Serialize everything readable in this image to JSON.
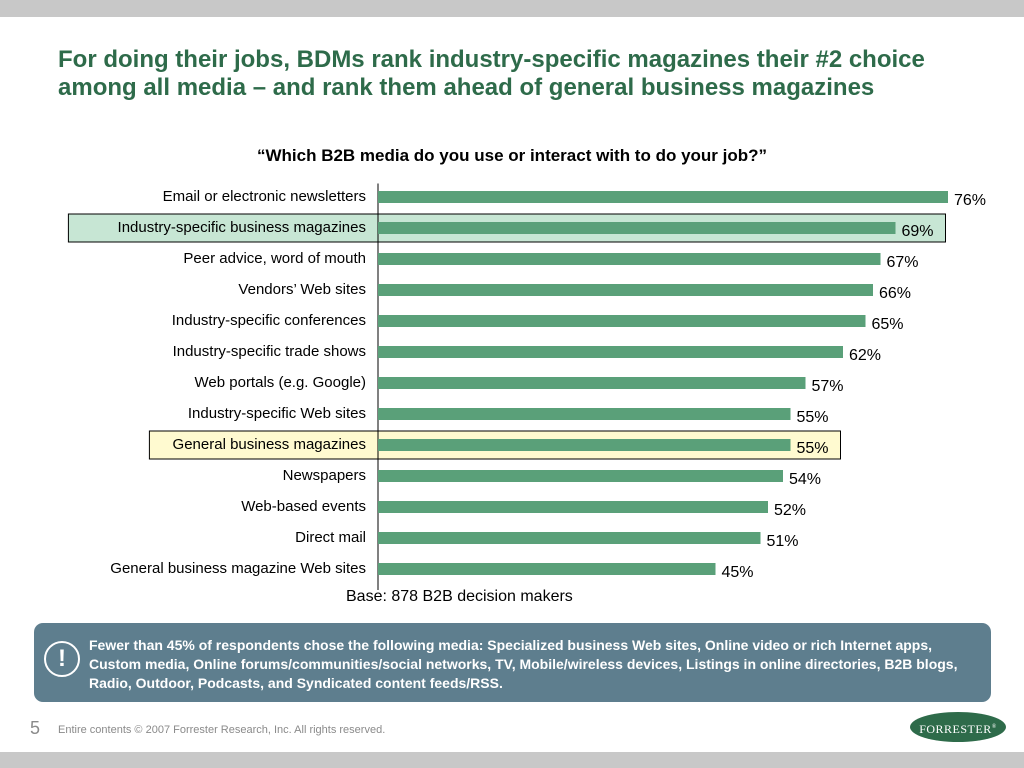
{
  "slide": {
    "title": "For doing their jobs, BDMs rank industry-specific magazines their #2 choice among all media – and rank them ahead of general business magazines",
    "question": "“Which B2B media do you use or interact with to do your job?”",
    "base_note": "Base:  878 B2B decision makers",
    "callout": "Fewer than 45% of respondents chose the following media: Specialized business Web sites, Online video or rich Internet apps, Custom media, Online forums/communities/social networks, TV, Mobile/wireless devices, Listings in online directories, B2B blogs, Radio, Outdoor, Podcasts, and Syndicated content feeds/RSS.",
    "callout_icon": "!",
    "page_number": "5",
    "copyright": "Entire contents © 2007  Forrester Research, Inc. All rights reserved.",
    "logo_text": "FORRESTER",
    "logo_mark": "®"
  },
  "colors": {
    "title": "#2e6b4a",
    "bar": "#5aa079",
    "highlight_green": "#c7e6d4",
    "highlight_yellow": "#fffad0",
    "callout_bg": "#5e7e8e"
  },
  "chart_data": {
    "type": "bar",
    "orientation": "horizontal",
    "unit": "%",
    "categories": [
      "Email or electronic newsletters",
      "Industry-specific business magazines",
      "Peer advice, word of mouth",
      "Vendors’ Web sites",
      "Industry-specific conferences",
      "Industry-specific trade shows",
      "Web portals (e.g. Google)",
      "Industry-specific Web sites",
      "General business magazines",
      "Newspapers",
      "Web-based events",
      "Direct mail",
      "General business magazine Web sites"
    ],
    "values": [
      76,
      69,
      67,
      66,
      65,
      62,
      57,
      55,
      55,
      54,
      52,
      51,
      45
    ],
    "labels": [
      "76%",
      "69%",
      "67%",
      "66%",
      "65%",
      "62%",
      "57%",
      "55%",
      "55%",
      "54%",
      "52%",
      "51%",
      "45%"
    ],
    "highlights": [
      {
        "category": "Industry-specific business magazines",
        "color": "#c7e6d4"
      },
      {
        "category": "General business magazines",
        "color": "#fffad0"
      }
    ],
    "xlim": [
      0,
      80
    ],
    "grid": false,
    "legend": "none"
  }
}
